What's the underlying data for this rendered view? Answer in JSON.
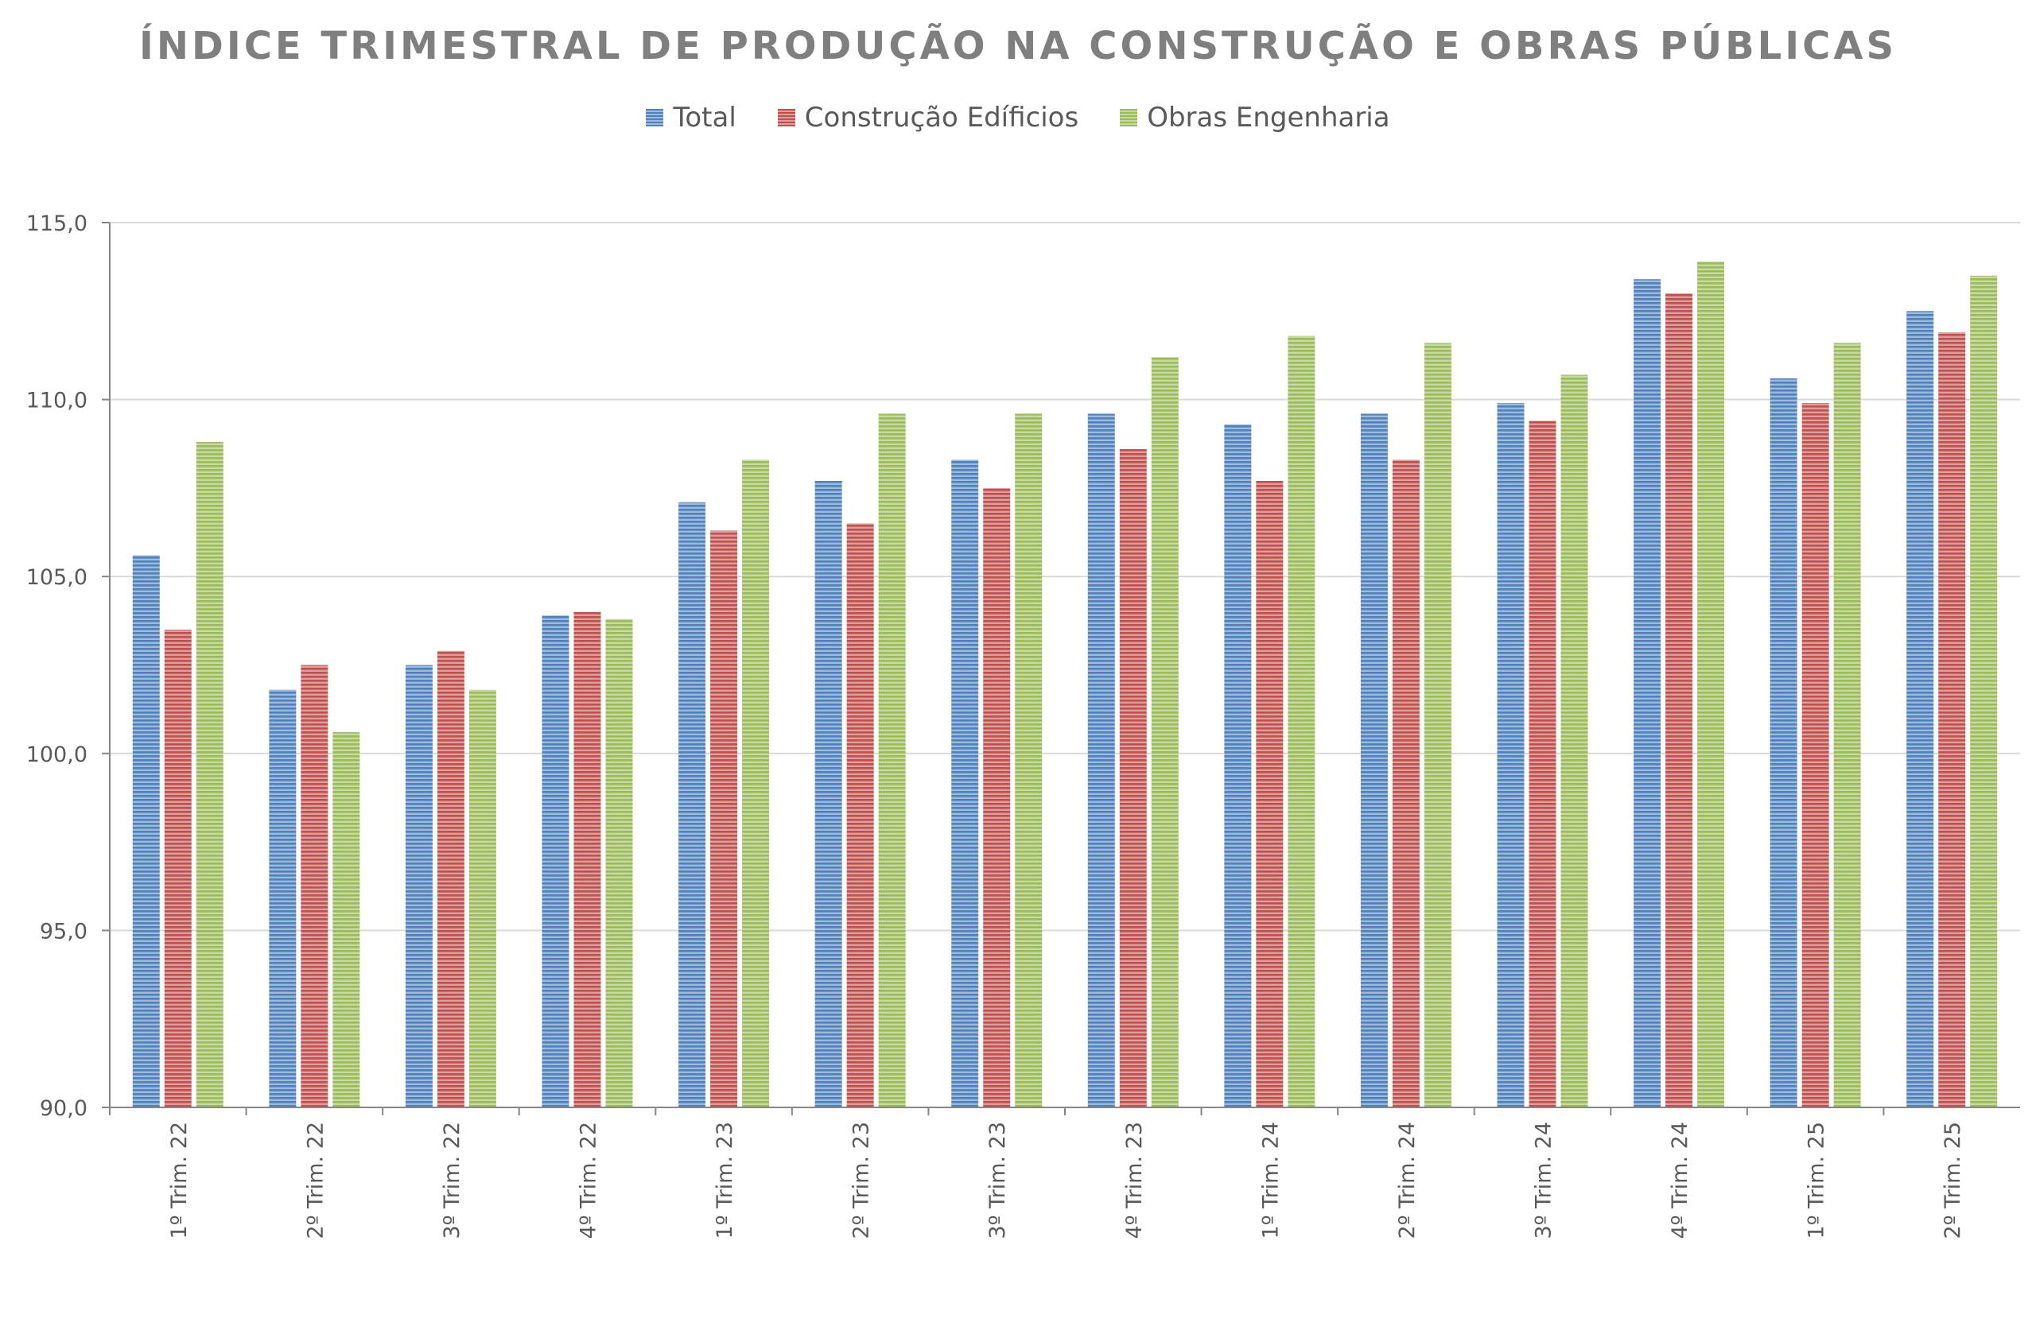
{
  "chart_data": {
    "type": "bar",
    "title": "ÍNDICE TRIMESTRAL DE PRODUÇÃO NA CONSTRUÇÃO E OBRAS PÚBLICAS",
    "xlabel": "",
    "ylabel": "",
    "ylim": [
      90,
      115
    ],
    "yticks": [
      "90,0",
      "95,0",
      "100,0",
      "105,0",
      "110,0",
      "115,0"
    ],
    "ytick_values": [
      90,
      95,
      100,
      105,
      110,
      115
    ],
    "grid": true,
    "legend_position": "top-center",
    "categories": [
      "1º Trim. 22",
      "2º Trim. 22",
      "3º Trim. 22",
      "4º Trim. 22",
      "1º Trim. 23",
      "2º Trim. 23",
      "3º Trim. 23",
      "4º Trim. 23",
      "1º Trim. 24",
      "2º Trim. 24",
      "3º Trim. 24",
      "4º Trim. 24",
      "1º Trim. 25",
      "2º Trim. 25"
    ],
    "series": [
      {
        "name": "Total",
        "color": "#4f81bd",
        "values": [
          105.6,
          101.8,
          102.5,
          103.9,
          107.1,
          107.7,
          108.3,
          109.6,
          109.3,
          109.6,
          109.9,
          113.4,
          110.6,
          112.5
        ]
      },
      {
        "name": "Construção Edíficios",
        "color": "#c0504d",
        "values": [
          103.5,
          102.5,
          102.9,
          104.0,
          106.3,
          106.5,
          107.5,
          108.6,
          107.7,
          108.3,
          109.4,
          113.0,
          109.9,
          111.9
        ]
      },
      {
        "name": "Obras Engenharia",
        "color": "#9bbb59",
        "values": [
          108.8,
          100.6,
          101.8,
          103.8,
          108.3,
          109.6,
          109.6,
          111.2,
          111.8,
          111.6,
          110.7,
          113.9,
          111.6,
          113.5
        ]
      }
    ]
  }
}
